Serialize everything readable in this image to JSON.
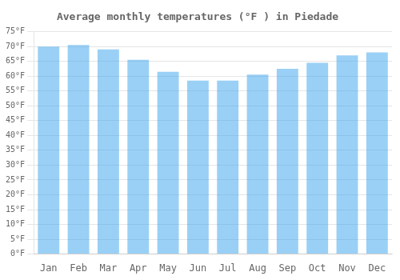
{
  "chart_data": {
    "type": "bar",
    "title": "Average monthly temperatures (°F ) in Piedade",
    "categories": [
      "Jan",
      "Feb",
      "Mar",
      "Apr",
      "May",
      "Jun",
      "Jul",
      "Aug",
      "Sep",
      "Oct",
      "Nov",
      "Dec"
    ],
    "values": [
      70.0,
      70.5,
      69.0,
      65.5,
      61.5,
      58.5,
      58.5,
      60.5,
      62.5,
      64.5,
      67.0,
      68.0
    ],
    "ylim": [
      0,
      75
    ],
    "yticks": [
      {
        "value": 0,
        "label": "0°F"
      },
      {
        "value": 5,
        "label": "5°F"
      },
      {
        "value": 10,
        "label": "10°F"
      },
      {
        "value": 15,
        "label": "15°F"
      },
      {
        "value": 20,
        "label": "20°F"
      },
      {
        "value": 25,
        "label": "25°F"
      },
      {
        "value": 30,
        "label": "30°F"
      },
      {
        "value": 35,
        "label": "35°F"
      },
      {
        "value": 40,
        "label": "40°F"
      },
      {
        "value": 45,
        "label": "45°F"
      },
      {
        "value": 50,
        "label": "50°F"
      },
      {
        "value": 55,
        "label": "55°F"
      },
      {
        "value": 60,
        "label": "60°F"
      },
      {
        "value": 65,
        "label": "65°F"
      },
      {
        "value": 70,
        "label": "70°F"
      },
      {
        "value": 75,
        "label": "75°F"
      }
    ],
    "grid": true
  }
}
